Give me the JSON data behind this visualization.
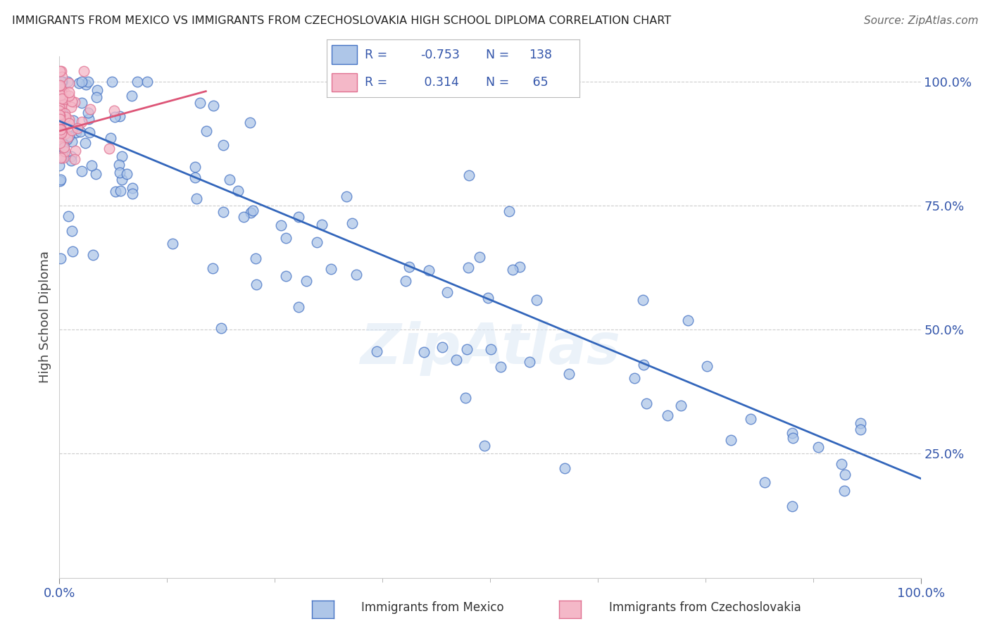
{
  "title": "IMMIGRANTS FROM MEXICO VS IMMIGRANTS FROM CZECHOSLOVAKIA HIGH SCHOOL DIPLOMA CORRELATION CHART",
  "source": "Source: ZipAtlas.com",
  "ylabel": "High School Diploma",
  "legend_mexico": "Immigrants from Mexico",
  "legend_czech": "Immigrants from Czechoslovakia",
  "R_mexico": -0.753,
  "N_mexico": 138,
  "R_czech": 0.314,
  "N_czech": 65,
  "color_mexico_fill": "#aec6e8",
  "color_mexico_edge": "#4472c4",
  "color_czech_fill": "#f4b8c8",
  "color_czech_edge": "#e07090",
  "color_line_mexico": "#3366bb",
  "color_line_czech": "#dd5577",
  "background": "#ffffff",
  "grid_color": "#cccccc",
  "legend_text_color": "#3355aa",
  "ytick_color": "#3355aa",
  "xtick_color": "#3355aa"
}
